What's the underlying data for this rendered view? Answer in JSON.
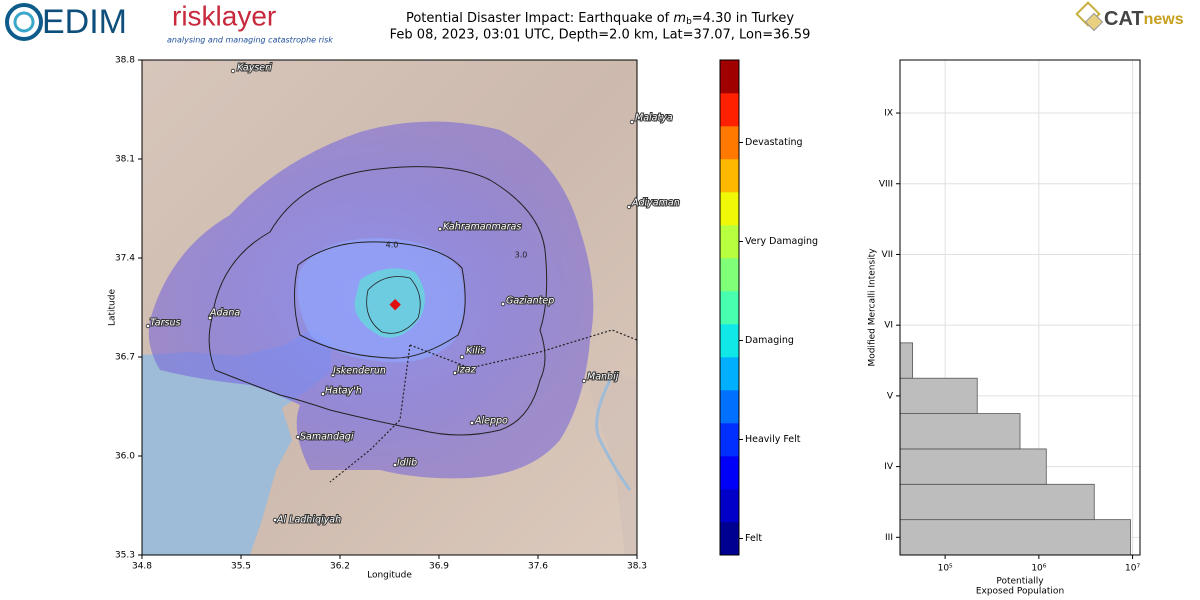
{
  "header": {
    "logo_left": "EDIM",
    "brand": "risklayer",
    "tagline": "analysing and managing catastrophe risk",
    "logo_right_cat": "CAT",
    "logo_right_news": "news",
    "title_prefix": "Potential Disaster Impact: Earthquake of ",
    "title_symbol": "m",
    "title_subscript": "b",
    "title_suffix": "=4.30 in Turkey",
    "subtitle": "Feb 08, 2023, 03:01 UTC, Depth=2.0 km, Lat=37.07, Lon=36.59"
  },
  "map": {
    "xlabel": "Longitude",
    "ylabel": "Latitude",
    "xlim": [
      34.8,
      38.3
    ],
    "ylim": [
      35.3,
      38.8
    ],
    "xticks": [
      34.8,
      35.5,
      36.2,
      36.9,
      37.6,
      38.3
    ],
    "yticks": [
      35.3,
      {
        "value": 36,
        "label": "36.0"
      },
      36.7,
      37.4,
      38.1,
      38.8
    ],
    "epicenter": [
      36.59,
      37.07
    ],
    "cities": [
      "Kayseri",
      "Malatya",
      "Adiyaman",
      "Kahramanmaras",
      "Gaziantep",
      "Adana",
      "Tarsus",
      "Kilis",
      "Iskenderun",
      "Izaz",
      "Manbij",
      "Hatay'h",
      "Samandagi",
      "Aleppo",
      "Idlib",
      "Al Ladhiqiyah"
    ],
    "contour_labels": [
      "4.0",
      "3.0"
    ]
  },
  "colorbar": {
    "colors": [
      "#000090",
      "#0000c8",
      "#0000f8",
      "#0030ff",
      "#0070ff",
      "#00b0ff",
      "#10e8e8",
      "#48ffb0",
      "#80ff78",
      "#b8ff40",
      "#f0f808",
      "#ffb800",
      "#ff7800",
      "#ff2000",
      "#a00000"
    ],
    "labels": [
      "Felt",
      "Heavily Felt",
      "Damaging",
      "Very Damaging",
      "Devastating"
    ]
  },
  "chart_data": {
    "type": "bar",
    "orientation": "horizontal",
    "ylabel": "Modified Mercalli Intensity",
    "xlabel": [
      "Potentially",
      "Exposed Population"
    ],
    "y": [
      3,
      3.5,
      4,
      4.5,
      5,
      5.5
    ],
    "values": [
      9500000,
      3900000,
      1200000,
      630000,
      220000,
      45000
    ],
    "color": "#bdbdbd",
    "edgecolor": "#555555",
    "xscale": "log",
    "xlim": [
      33000,
      12000000
    ],
    "xticks": [
      {
        "value": 100000,
        "label": "10⁵"
      },
      {
        "value": 1000000,
        "label": "10⁶"
      },
      {
        "value": 10000000,
        "label": "10⁷"
      }
    ],
    "ylim": [
      2.75,
      9.75
    ],
    "yticks": [
      {
        "value": 3,
        "label": "III"
      },
      {
        "value": 4,
        "label": "IV"
      },
      {
        "value": 5,
        "label": "V"
      },
      {
        "value": 6,
        "label": "VI"
      },
      {
        "value": 7,
        "label": "VII"
      },
      {
        "value": 8,
        "label": "VIII"
      },
      {
        "value": 9,
        "label": "IX"
      }
    ],
    "grid": true
  }
}
